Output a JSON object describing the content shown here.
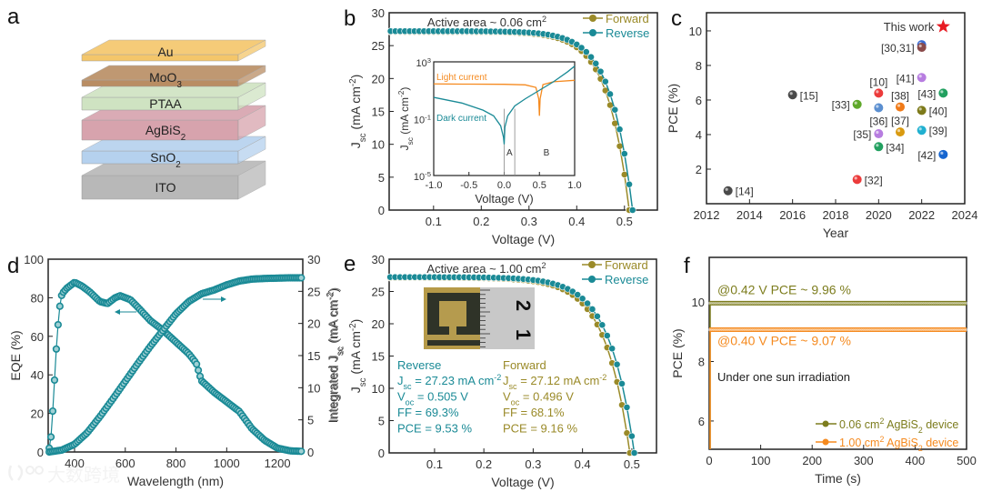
{
  "panel_letters": [
    "a",
    "b",
    "c",
    "d",
    "e",
    "f"
  ],
  "watermark": "大数跨境",
  "colors": {
    "forward": "#9a8a28",
    "reverse": "#1a8a96",
    "orange": "#f58a1f",
    "olive": "#7d7d1e",
    "axis": "#222222",
    "text": "#333333",
    "red": "#e81b23"
  },
  "chart_data": [
    {
      "panel": "a",
      "type": "diagram",
      "layers": [
        {
          "label": "Au",
          "color": "#f4c66a"
        },
        {
          "label": "MoO_{3}",
          "color": "#b98d63"
        },
        {
          "label": "PTAA",
          "color": "#cfe3c2"
        },
        {
          "label": "AgBiS_{2}",
          "color": "#d7a3ad"
        },
        {
          "label": "SnO_{2}",
          "color": "#b5d1ee"
        },
        {
          "label": "ITO",
          "color": "#b8b8b8"
        }
      ]
    },
    {
      "panel": "b",
      "type": "line",
      "title": "Active area ~ 0.06 cm^{2}",
      "xlabel": "Voltage (V)",
      "ylabel": "J_{sc} (mA cm^{-2})",
      "xlim": [
        0.007,
        0.569
      ],
      "ylim": [
        0,
        30
      ],
      "xticks": [
        0.1,
        0.2,
        0.3,
        0.4,
        0.5
      ],
      "yticks": [
        0,
        5,
        10,
        15,
        20,
        25,
        30
      ],
      "legend": [
        "Forward",
        "Reverse"
      ],
      "legend_position": "top-right",
      "series": [
        {
          "name": "Forward",
          "jsc": 27.1,
          "voc": 0.51,
          "ideality_v": 0.045,
          "v_step": 0.01
        },
        {
          "name": "Reverse",
          "jsc": 27.2,
          "voc": 0.517,
          "ideality_v": 0.045,
          "v_step": 0.01
        }
      ],
      "inset": {
        "type": "line",
        "yscale": "log",
        "xlabel": "Voltage (V)",
        "ylabel": "J_{sc} (mA cm^{-2})",
        "xlim": [
          -1,
          1
        ],
        "ylim_log10": [
          -5,
          3
        ],
        "xticks": [
          -1.0,
          -0.5,
          0.0,
          0.5,
          1.0
        ],
        "xtick_labels": [
          "-1.0",
          "-0.5",
          "0.0",
          "0.5",
          "1.0"
        ],
        "ytick_labels": [
          {
            "base": "10",
            "exp": "3",
            "log": 3
          },
          {
            "base": "10",
            "exp": "-1",
            "log": -1
          },
          {
            "base": "10",
            "exp": "-5",
            "log": -5
          }
        ],
        "markers": [
          "A",
          "B"
        ],
        "marker_lines": [
          0.0,
          0.15
        ],
        "series": [
          {
            "name": "Light current",
            "x": [
              -1,
              -0.5,
              0,
              0.3,
              0.45,
              0.49,
              0.5,
              0.51,
              0.55,
              0.7,
              1.0
            ],
            "log10_y": [
              1.45,
              1.43,
              1.42,
              1.38,
              1.2,
              0.4,
              -0.8,
              0.4,
              1.4,
              1.6,
              1.7
            ]
          },
          {
            "name": "Dark current",
            "x": [
              -1,
              -0.6,
              -0.3,
              -0.15,
              -0.05,
              -0.01,
              0,
              0.01,
              0.05,
              0.15,
              0.3,
              0.5,
              0.7,
              0.9,
              1.0
            ],
            "log10_y": [
              0.5,
              0.1,
              -0.4,
              -0.8,
              -1.5,
              -2.3,
              -2.8,
              -1.6,
              -0.8,
              -0.1,
              0.4,
              1.0,
              1.6,
              2.3,
              2.7
            ]
          }
        ]
      }
    },
    {
      "panel": "c",
      "type": "scatter",
      "xlabel": "Year",
      "ylabel": "PCE (%)",
      "xlim": [
        2012,
        2024
      ],
      "ylim": [
        0,
        11.05
      ],
      "xticks": [
        2012,
        2014,
        2016,
        2018,
        2020,
        2022,
        2024
      ],
      "yticks": [
        2,
        4,
        6,
        8,
        10
      ],
      "points": [
        {
          "x": 2013,
          "y": 0.75,
          "label": "[14]",
          "color": "#4a4a4a",
          "side": "right"
        },
        {
          "x": 2016,
          "y": 6.3,
          "label": "[15]",
          "color": "#4a4a4a",
          "side": "right"
        },
        {
          "x": 2019,
          "y": 1.4,
          "label": "[32]",
          "color": "#ec3b3b",
          "side": "right"
        },
        {
          "x": 2019,
          "y": 5.75,
          "label": "[33]",
          "color": "#5fa82a",
          "side": "left"
        },
        {
          "x": 2020,
          "y": 6.4,
          "label": "[10]",
          "color": "#ec3b3b",
          "side": "above"
        },
        {
          "x": 2020,
          "y": 5.55,
          "label": "[36]",
          "color": "#5b8fd0",
          "side": "below"
        },
        {
          "x": 2020,
          "y": 4.05,
          "label": "[35]",
          "color": "#b77de0",
          "side": "left"
        },
        {
          "x": 2020,
          "y": 3.3,
          "label": "[34]",
          "color": "#22a060",
          "side": "right"
        },
        {
          "x": 2021,
          "y": 5.6,
          "label": "[38]",
          "color": "#f07a18",
          "side": "above"
        },
        {
          "x": 2021,
          "y": 4.15,
          "label": "[37]",
          "color": "#d99a10",
          "side": "above"
        },
        {
          "x": 2022,
          "y": 9.2,
          "label": "",
          "color": "#3a6ad0",
          "side": "left"
        },
        {
          "x": 2022,
          "y": 9.05,
          "label": "[30,31]",
          "color": "#8a4a4a",
          "side": "left"
        },
        {
          "x": 2022,
          "y": 7.3,
          "label": "[41]",
          "color": "#b77de0",
          "side": "left"
        },
        {
          "x": 2022,
          "y": 5.4,
          "label": "[40]",
          "color": "#7d7a1a",
          "side": "right"
        },
        {
          "x": 2022,
          "y": 4.25,
          "label": "[39]",
          "color": "#20b0d0",
          "side": "right"
        },
        {
          "x": 2023,
          "y": 6.4,
          "label": "[43]",
          "color": "#22a060",
          "side": "left"
        },
        {
          "x": 2023,
          "y": 2.85,
          "label": "[42]",
          "color": "#1565d0",
          "side": "left"
        }
      ],
      "highlight": {
        "x": 2023,
        "y": 10.25,
        "label": "This work",
        "marker": "star",
        "color": "#e81b23"
      }
    },
    {
      "panel": "d",
      "type": "line",
      "xlabel": "Wavelength (nm)",
      "ylabel": "EQE (%)",
      "y2label": "Integrated J_{sc} (mA cm^{-2})",
      "xlim": [
        296,
        1300
      ],
      "ylim": [
        0,
        100
      ],
      "y2lim": [
        0,
        30
      ],
      "xticks": [
        400,
        600,
        800,
        1000,
        1200
      ],
      "yticks": [
        0,
        20,
        40,
        60,
        80,
        100
      ],
      "y2ticks": [
        0,
        5,
        10,
        15,
        20,
        25,
        30
      ],
      "series": [
        {
          "name": "EQE",
          "axis": "left",
          "x": [
            300,
            305,
            310,
            320,
            330,
            340,
            350,
            370,
            400,
            430,
            460,
            500,
            530,
            560,
            580,
            620,
            650,
            700,
            750,
            800,
            850,
            880,
            900,
            950,
            1000,
            1050,
            1100,
            1150,
            1200,
            1250,
            1300
          ],
          "y": [
            2,
            5,
            12,
            35,
            58,
            74,
            82,
            85,
            88,
            86,
            83,
            78,
            77,
            80,
            81,
            79,
            75,
            68,
            63,
            57,
            51,
            46,
            37,
            31,
            26,
            21,
            12,
            6,
            2,
            0.6,
            0.3
          ]
        },
        {
          "name": "Integrated Jsc",
          "axis": "right",
          "x": [
            300,
            350,
            400,
            450,
            500,
            550,
            600,
            650,
            700,
            750,
            800,
            850,
            900,
            950,
            1000,
            1050,
            1100,
            1150,
            1200,
            1250,
            1300
          ],
          "y": [
            0,
            0.3,
            1.2,
            3,
            5.5,
            8.2,
            11,
            13.8,
            16.5,
            19,
            21.5,
            23.4,
            24.6,
            25.2,
            26,
            26.6,
            26.9,
            27,
            27.05,
            27.1,
            27.1
          ]
        }
      ],
      "arrows": [
        "left",
        "right"
      ]
    },
    {
      "panel": "e",
      "type": "line",
      "title": "Active area ~ 1.00 cm^{2}",
      "xlabel": "Voltage (V)",
      "ylabel": "J_{sc} (mA cm^{-2})",
      "partial_ylabel": "Integrated J_{sc} (mA cm^{-2})",
      "xlim": [
        0.008,
        0.55
      ],
      "ylim": [
        0,
        30
      ],
      "xticks": [
        0.1,
        0.2,
        0.3,
        0.4,
        0.5
      ],
      "yticks": [
        0,
        5,
        10,
        15,
        20,
        25,
        30
      ],
      "legend": [
        "Forward",
        "Reverse"
      ],
      "legend_position": "top-right",
      "series": [
        {
          "name": "Forward",
          "jsc": 27.12,
          "voc": 0.496,
          "ideality_v": 0.05,
          "v_step": 0.01
        },
        {
          "name": "Reverse",
          "jsc": 27.23,
          "voc": 0.505,
          "ideality_v": 0.05,
          "v_step": 0.01
        }
      ],
      "photo_ruler_labels": [
        "1",
        "2"
      ],
      "params": {
        "reverse": {
          "heading": "Reverse",
          "lines": [
            "J_{sc} = 27.23 mA cm^{-2}",
            "V_{oc} = 0.505 V",
            "FF = 69.3%",
            "PCE = 9.53 %"
          ]
        },
        "forward": {
          "heading": "Forward",
          "lines": [
            "J_{sc} = 27.12 mA cm^{-2}",
            "V_{oc} = 0.496 V",
            "FF = 68.1%",
            "PCE = 9.16 %"
          ]
        }
      }
    },
    {
      "panel": "f",
      "type": "line",
      "xlabel": "Time (s)",
      "ylabel": "PCE (%)",
      "xlim": [
        0,
        500
      ],
      "ylim": [
        5.05,
        11.5
      ],
      "xticks": [
        0,
        100,
        200,
        300,
        400,
        500
      ],
      "yticks": [
        6,
        8,
        10
      ],
      "annotation": "Under one sun irradiation",
      "series": [
        {
          "name": "0.06 cm^{2} AgBiS_{2} device",
          "value": 9.96,
          "label": "@0.42 V  PCE ~ 9.96 %"
        },
        {
          "name": "1.00 cm^{2} AgBiS_{2} device",
          "value": 9.07,
          "label": "@0.40 V PCE ~ 9.07 %"
        }
      ],
      "legend_position": "bottom-right"
    }
  ]
}
